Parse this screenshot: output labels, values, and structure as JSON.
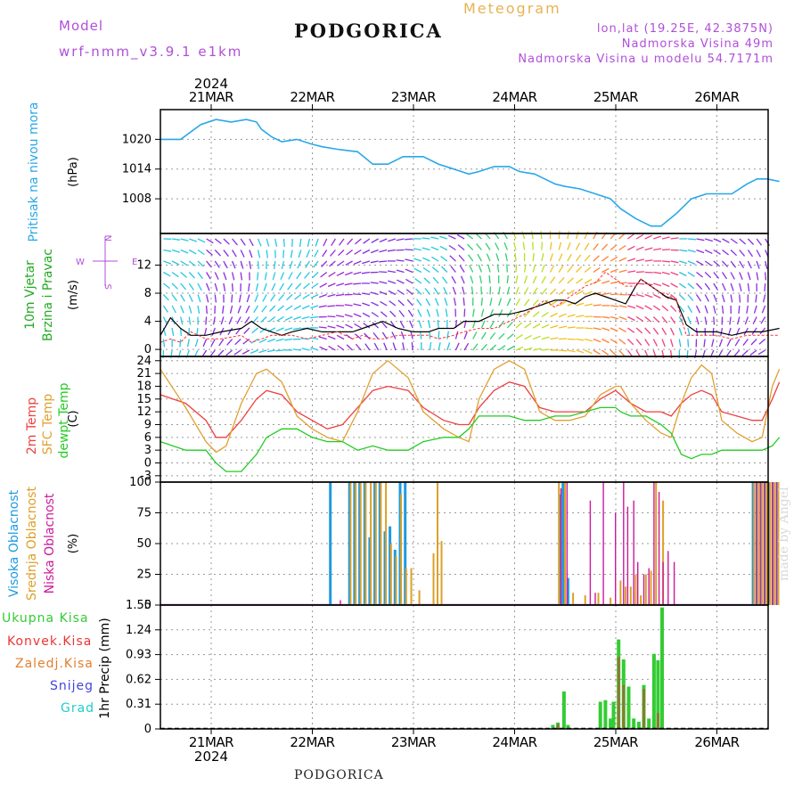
{
  "header": {
    "model_label": "Model",
    "model_name": "wrf-nmm_v3.9.1  e1km",
    "station": "PODGORICA",
    "chart_kind": "Meteogram",
    "location_line1": "lon,lat (19.25E, 42.3875N)",
    "location_line2": "Nadmorska Visina 49m",
    "location_line3": "Nadmorska Visina u modelu 54.7171m"
  },
  "footer": {
    "station": "PODGORICA",
    "credit": "made by Angel"
  },
  "time_axis": {
    "year": "2024",
    "labels": [
      "21MAR",
      "22MAR",
      "23MAR",
      "24MAR",
      "25MAR",
      "26MAR"
    ]
  },
  "colors": {
    "pressure": "#29a8e8",
    "wind_speed": "#000000",
    "gust": "#ff3030",
    "temp2m": "#ee4040",
    "sfc_temp": "#e0a030",
    "dewpoint": "#22cc22",
    "cloud_high": "#1e9be0",
    "cloud_mid": "#dca028",
    "cloud_low": "#cc1a99",
    "precip_total": "#33cc33",
    "precip_conv": "#ee3333",
    "precip_frozen": "#e08030",
    "snow": "#4444dd",
    "hail": "#22cccc"
  },
  "chart_data": [
    {
      "type": "line",
      "ylabel": "Pritisak na nivou mora",
      "unit": "(hPa)",
      "yticks": [
        "1020",
        "1014",
        "1008"
      ],
      "ylim": [
        1001,
        1026
      ],
      "x_days": [
        0.0,
        0.2,
        0.4,
        0.55,
        0.7,
        0.85,
        0.95,
        1.0,
        1.1,
        1.2,
        1.35,
        1.5,
        1.6,
        1.75,
        1.95,
        2.1,
        2.25,
        2.4,
        2.5,
        2.6,
        2.75,
        2.9,
        3.05,
        3.15,
        3.3,
        3.45,
        3.55,
        3.7,
        3.8,
        3.9,
        4.0,
        4.15,
        4.3,
        4.45,
        4.55,
        4.7,
        4.85,
        4.95,
        5.1,
        5.25,
        5.4,
        5.5,
        5.65,
        5.8,
        5.9,
        6.0,
        6.12
      ],
      "values": [
        1020,
        1020,
        1023,
        1024,
        1023.5,
        1024,
        1023.5,
        1022,
        1020.5,
        1019.5,
        1020,
        1019,
        1018.5,
        1018,
        1017.5,
        1015,
        1015,
        1016.5,
        1016.5,
        1016.5,
        1015,
        1014,
        1013,
        1013.5,
        1014.5,
        1014.5,
        1013.5,
        1013,
        1012,
        1011,
        1010.5,
        1010,
        1009,
        1008,
        1006,
        1004,
        1002.5,
        1002.5,
        1005,
        1008,
        1009,
        1009,
        1009,
        1011,
        1012,
        1012,
        1011.5
      ],
      "series_name": "Pritisak na nivou mora"
    },
    {
      "type": "line",
      "ylabel": "10m Vjetar Brzina i Pravac",
      "unit": "(m/s)",
      "yticks": [
        "0",
        "4",
        "8",
        "12"
      ],
      "ylim": [
        -1,
        16.5
      ],
      "compass": {
        "north": "N",
        "south": "S",
        "west": "W",
        "east": "E"
      },
      "x_days": [
        0.0,
        0.1,
        0.2,
        0.3,
        0.45,
        0.6,
        0.8,
        0.9,
        1.0,
        1.1,
        1.2,
        1.3,
        1.45,
        1.6,
        1.75,
        1.9,
        2.0,
        2.1,
        2.2,
        2.35,
        2.5,
        2.65,
        2.75,
        2.9,
        3.0,
        3.15,
        3.3,
        3.45,
        3.6,
        3.7,
        3.8,
        3.9,
        4.0,
        4.1,
        4.2,
        4.3,
        4.4,
        4.5,
        4.6,
        4.7,
        4.75,
        4.85,
        4.95,
        5.0,
        5.1,
        5.2,
        5.3,
        5.4,
        5.5,
        5.65,
        5.8,
        5.95,
        6.12
      ],
      "speed": [
        2,
        4.5,
        3,
        2,
        2,
        2.5,
        3,
        4,
        3,
        2.5,
        2,
        2.5,
        3,
        2.5,
        2.5,
        2.5,
        3,
        3.5,
        4,
        3,
        2.5,
        2.5,
        3,
        3,
        4,
        4,
        5,
        5,
        5.5,
        6,
        6.5,
        7,
        7,
        6.5,
        7.5,
        8,
        7.5,
        7,
        6.5,
        9,
        10,
        9,
        8,
        7.5,
        7,
        3.5,
        2.5,
        2.5,
        2.5,
        2,
        2.5,
        2.5,
        3
      ],
      "gust": [
        1,
        1.5,
        1,
        2.5,
        1.5,
        1.5,
        2,
        1,
        1.5,
        2,
        2,
        2,
        1.5,
        2,
        2.5,
        1.5,
        2,
        1.5,
        1.5,
        2,
        2,
        2,
        1.5,
        2,
        2.5,
        3,
        3,
        4,
        5,
        6,
        7,
        6,
        7,
        8,
        9,
        9.5,
        11,
        10,
        9,
        9,
        10,
        9,
        8,
        8,
        7,
        2,
        2,
        2,
        2,
        1.5,
        2,
        2,
        2
      ]
    },
    {
      "type": "line",
      "ylabel": "2m Temp / SFC Temp / dewpt Temp",
      "unit": "(C)",
      "yticks": [
        "24",
        "21",
        "18",
        "15",
        "12",
        "9",
        "6",
        "3",
        "0",
        "-3"
      ],
      "ylim": [
        -4.5,
        25
      ],
      "x_days": [
        0.0,
        0.25,
        0.45,
        0.55,
        0.65,
        0.8,
        0.95,
        1.05,
        1.2,
        1.35,
        1.5,
        1.65,
        1.8,
        1.95,
        2.1,
        2.25,
        2.45,
        2.6,
        2.8,
        2.95,
        3.05,
        3.15,
        3.3,
        3.45,
        3.6,
        3.75,
        3.9,
        4.05,
        4.2,
        4.35,
        4.5,
        4.55,
        4.65,
        4.8,
        4.95,
        5.05,
        5.15,
        5.25,
        5.35,
        5.45,
        5.55,
        5.7,
        5.85,
        5.95,
        6.05,
        6.12
      ],
      "series": [
        {
          "name": "2m Temp",
          "values": [
            16,
            14,
            10,
            6,
            6,
            10,
            15,
            17,
            16,
            12,
            10,
            8,
            9,
            13,
            17,
            18,
            17,
            13,
            10,
            9,
            9,
            13,
            17,
            19,
            18,
            13,
            12,
            12,
            12,
            15,
            17,
            16,
            14,
            12,
            12,
            11,
            14,
            16,
            17,
            16,
            12,
            11,
            10,
            10,
            15,
            19
          ]
        },
        {
          "name": "SFC Temp",
          "values": [
            22,
            13,
            5,
            2.5,
            4,
            14,
            21,
            22,
            19,
            11,
            8,
            6,
            5,
            12,
            21,
            24,
            20,
            12,
            8,
            6,
            5,
            15,
            22,
            24,
            22,
            12,
            10,
            10,
            11,
            16,
            18,
            18,
            14,
            10,
            7,
            6,
            14,
            20,
            23,
            21,
            10,
            7,
            5,
            6,
            18,
            22
          ]
        },
        {
          "name": "dewpt Temp",
          "values": [
            5,
            3,
            3,
            0,
            -2,
            -2,
            2,
            6,
            8,
            8,
            6,
            5,
            5,
            3,
            4,
            3,
            3,
            5,
            6,
            6,
            8,
            11,
            11,
            11,
            10,
            10,
            11,
            11,
            12,
            13,
            13,
            12,
            11,
            11,
            9,
            7,
            2,
            1,
            2,
            2,
            3,
            3,
            3,
            3,
            4,
            6
          ]
        }
      ]
    },
    {
      "type": "bar",
      "ylabel": "Visoka Oblacnost / Srednja Oblacnost / Niska Oblacnost",
      "unit": "(%)",
      "yticks": [
        "100",
        "75",
        "50",
        "25",
        "0"
      ],
      "ylim": [
        0,
        100
      ],
      "high": {
        "x": [
          1.68,
          1.87,
          1.92,
          1.97,
          2.02,
          2.07,
          2.12,
          2.17,
          2.22,
          2.27,
          2.32,
          2.37,
          2.42,
          3.95,
          3.98,
          4.03,
          5.86,
          5.9,
          5.94,
          5.98,
          6.02,
          6.06,
          6.1
        ],
        "values": [
          100,
          100,
          100,
          100,
          100,
          55,
          100,
          100,
          60,
          64,
          45,
          100,
          100,
          90,
          100,
          22,
          100,
          100,
          100,
          100,
          100,
          100,
          100
        ]
      },
      "mid": {
        "x": [
          1.88,
          1.93,
          1.98,
          2.03,
          2.08,
          2.13,
          2.18,
          2.23,
          2.28,
          2.33,
          2.38,
          2.43,
          2.48,
          2.56,
          2.7,
          2.74,
          2.78,
          3.94,
          4.0,
          4.08,
          4.2,
          4.33,
          4.45,
          4.55,
          4.6,
          4.65,
          4.7,
          4.75,
          4.8,
          4.85,
          4.9,
          4.97,
          5.87,
          5.91,
          5.95,
          5.99,
          6.03,
          6.07,
          6.11
        ],
        "values": [
          100,
          100,
          100,
          100,
          100,
          100,
          100,
          100,
          50,
          40,
          90,
          30,
          30,
          12,
          42,
          100,
          52,
          100,
          100,
          10,
          8,
          10,
          6,
          20,
          15,
          15,
          25,
          8,
          25,
          28,
          100,
          85,
          100,
          100,
          100,
          100,
          100,
          100,
          100
        ]
      },
      "low": {
        "x": [
          1.78,
          3.96,
          4.02,
          4.25,
          4.3,
          4.38,
          4.5,
          4.58,
          4.62,
          4.68,
          4.72,
          4.78,
          4.83,
          4.88,
          4.93,
          4.97,
          5.02,
          5.08,
          5.89,
          5.93,
          5.97,
          6.01,
          6.05,
          6.09
        ],
        "values": [
          4,
          95,
          100,
          85,
          10,
          100,
          75,
          100,
          80,
          85,
          35,
          25,
          30,
          100,
          92,
          35,
          44,
          35,
          100,
          100,
          100,
          100,
          100,
          100
        ]
      }
    },
    {
      "type": "bar",
      "ylabel": "1hr Precip",
      "unit": "(mm)",
      "yticks": [
        "1.55",
        "1.24",
        "0.93",
        "0.62",
        "0.31",
        "0"
      ],
      "ylim": [
        0,
        1.55
      ],
      "legend": [
        "Ukupna Kisa",
        "Konvek.Kisa",
        "Zaledj.Kisa",
        "Snijeg",
        "Grad"
      ],
      "total": {
        "x": [
          3.88,
          3.93,
          3.99,
          4.03,
          4.35,
          4.4,
          4.45,
          4.48,
          4.53,
          4.58,
          4.63,
          4.68,
          4.73,
          4.78,
          4.83,
          4.88,
          4.92,
          4.96
        ],
        "values": [
          0.05,
          0.08,
          0.47,
          0.05,
          0.34,
          0.36,
          0.13,
          0.34,
          1.12,
          0.87,
          0.53,
          0.13,
          0.09,
          0.55,
          0.13,
          0.94,
          0.86,
          1.52
        ]
      },
      "convective": {
        "x": [
          3.93,
          4.53,
          4.58,
          4.78,
          4.92
        ],
        "values": [
          0.06,
          0.9,
          0.55,
          0.5,
          0.2
        ]
      }
    }
  ]
}
